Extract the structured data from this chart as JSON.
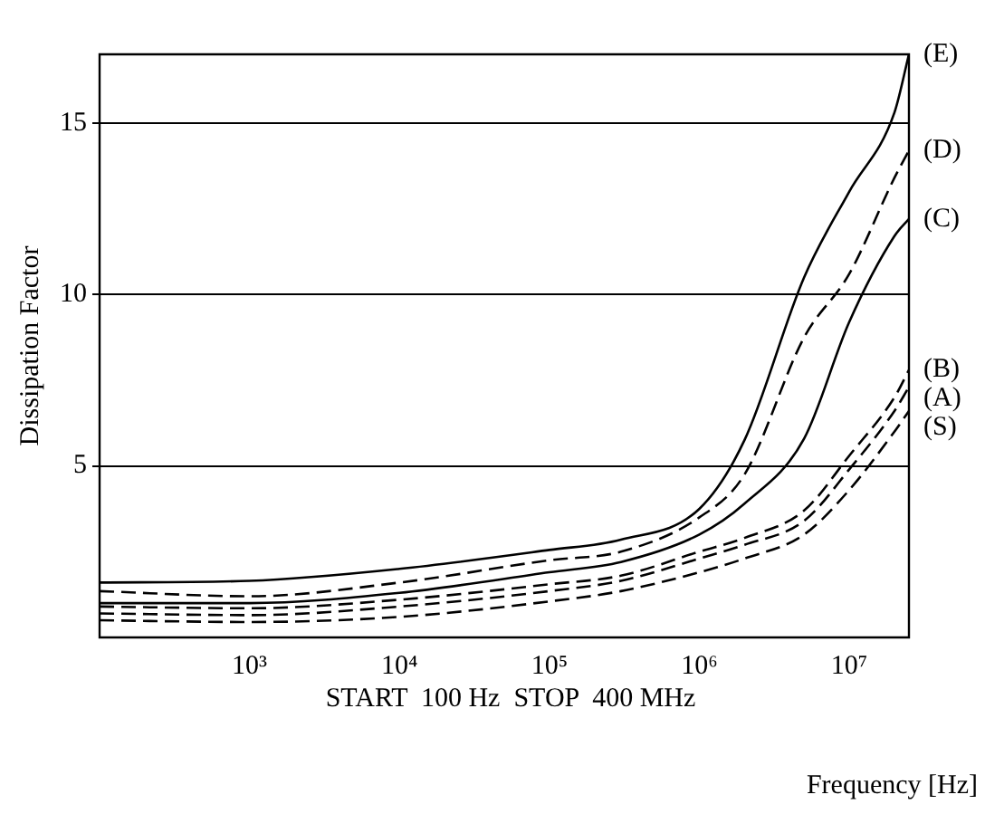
{
  "chart_data": {
    "type": "line",
    "ylabel": "Dissipation Factor",
    "xlabel": "Frequency [Hz]",
    "annotations": [
      "START  100 Hz  STOP  400 MHz"
    ],
    "log": "x",
    "x": [
      100,
      1000,
      10000,
      100000,
      300000,
      1000000,
      2000000,
      5000000,
      10000000,
      20000000,
      25000000
    ],
    "xlim": [
      100,
      25000000
    ],
    "xticks": [
      {
        "value": 1000,
        "label": "10³"
      },
      {
        "value": 10000,
        "label": "10⁴"
      },
      {
        "value": 100000,
        "label": "10⁵"
      },
      {
        "value": 1000000,
        "label": "10⁶"
      },
      {
        "value": 10000000,
        "label": "10⁷"
      }
    ],
    "ylim": [
      0,
      17
    ],
    "yticks": [
      5,
      10,
      15
    ],
    "grid": "y",
    "legend": false,
    "marker": "none",
    "series": [
      {
        "name": "(E)",
        "color": "#000000",
        "line_style": "solid",
        "values": [
          1.6,
          1.65,
          2.0,
          2.55,
          2.85,
          3.75,
          5.75,
          10.5,
          13,
          15.3,
          17
        ]
      },
      {
        "name": "(D)",
        "color": "#000000",
        "line_style": "dashed",
        "values": [
          1.35,
          1.2,
          1.6,
          2.25,
          2.5,
          3.5,
          4.75,
          8.75,
          10.6,
          13.4,
          14.2
        ]
      },
      {
        "name": "(C)",
        "color": "#000000",
        "line_style": "solid",
        "values": [
          1.0,
          1.0,
          1.3,
          1.9,
          2.2,
          3.0,
          3.9,
          5.8,
          9.2,
          11.7,
          12.2
        ]
      },
      {
        "name": "(B)",
        "color": "#000000",
        "line_style": "dashed",
        "values": [
          0.9,
          0.85,
          1.1,
          1.55,
          1.8,
          2.5,
          2.9,
          3.7,
          5.3,
          7.0,
          7.8
        ]
      },
      {
        "name": "(A)",
        "color": "#000000",
        "line_style": "dashed",
        "values": [
          0.7,
          0.65,
          0.9,
          1.35,
          1.65,
          2.3,
          2.7,
          3.4,
          4.9,
          6.6,
          7.3
        ]
      },
      {
        "name": "(S)",
        "color": "#000000",
        "line_style": "dashed",
        "values": [
          0.5,
          0.45,
          0.6,
          1.05,
          1.35,
          1.9,
          2.3,
          3.0,
          4.3,
          6.0,
          6.6
        ]
      }
    ]
  }
}
